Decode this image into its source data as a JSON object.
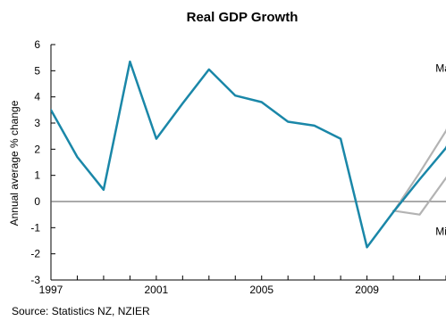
{
  "chart_data": {
    "type": "line",
    "title": "Real GDP Growth",
    "ylabel": "Annual average % change",
    "xlabel": "",
    "ylim": [
      -3,
      6
    ],
    "xlim": [
      1997,
      2012
    ],
    "y_ticks": [
      6,
      5,
      4,
      3,
      2,
      1,
      0,
      -1,
      -2,
      -3
    ],
    "x_tick_labels": [
      {
        "value": 1997,
        "label": "1997"
      },
      {
        "value": 2001,
        "label": "2001"
      },
      {
        "value": 2005,
        "label": "2005"
      },
      {
        "value": 2009,
        "label": "2009"
      }
    ],
    "grid": false,
    "legend": "none",
    "series": [
      {
        "role": "main",
        "color": "#1a87a8",
        "points": [
          [
            1997,
            3.5
          ],
          [
            1998,
            1.7
          ],
          [
            1999,
            0.45
          ],
          [
            2000,
            5.35
          ],
          [
            2001,
            2.4
          ],
          [
            2002,
            3.75
          ],
          [
            2003,
            5.05
          ],
          [
            2004,
            4.05
          ],
          [
            2005,
            3.8
          ],
          [
            2006,
            3.05
          ],
          [
            2007,
            2.9
          ],
          [
            2008,
            2.4
          ],
          [
            2009,
            -1.75
          ],
          [
            2010,
            -0.4
          ],
          [
            2011,
            0.85
          ],
          [
            2012,
            2.05
          ],
          [
            2012.75,
            3.55
          ]
        ]
      },
      {
        "role": "maximum",
        "color": "#b3b3b3",
        "points": [
          [
            2010,
            -0.4
          ],
          [
            2011,
            1.1
          ],
          [
            2012,
            2.7
          ],
          [
            2012.75,
            4.5
          ]
        ]
      },
      {
        "role": "minimum",
        "color": "#b3b3b3",
        "points": [
          [
            2010,
            -0.35
          ],
          [
            2011,
            -0.5
          ],
          [
            2012,
            0.9
          ],
          [
            2012.75,
            1.8
          ]
        ]
      }
    ],
    "annotations": [
      {
        "text": "Maximum",
        "x": 2011.6,
        "y": 5.1
      },
      {
        "text": "Minimum",
        "x": 2011.6,
        "y": -1.15
      }
    ],
    "source": "Source: Statistics NZ, NZIER"
  }
}
